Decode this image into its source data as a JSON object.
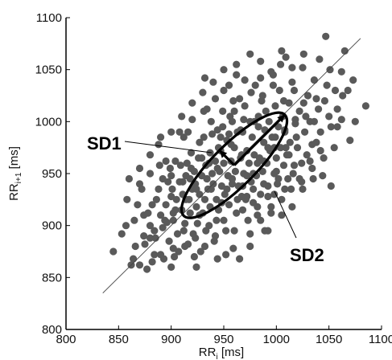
{
  "chart_data": {
    "type": "scatter",
    "title": "",
    "xlabel": {
      "main": "RR",
      "sub": "i",
      "unit": "[ms]"
    },
    "ylabel": {
      "main": "RR",
      "sub": "i+1",
      "unit": "[ms]"
    },
    "xlim": [
      800,
      1100
    ],
    "ylim": [
      800,
      1100
    ],
    "xticks": [
      "800",
      "850",
      "900",
      "950",
      "1000",
      "1050",
      "1100"
    ],
    "yticks": [
      "800",
      "850",
      "900",
      "950",
      "1000",
      "1050",
      "1100"
    ],
    "grid": false,
    "point_color": "#5a5a5a",
    "identity_line": {
      "x": [
        835,
        1080
      ],
      "y": [
        835,
        1080
      ]
    },
    "ellipse": {
      "center": [
        960,
        958
      ],
      "sd1": 20,
      "sd2": 68,
      "angle_deg": 45
    },
    "annotations": [
      {
        "label": "SD1",
        "target": "sd1-axis"
      },
      {
        "label": "SD2",
        "target": "ellipse-edge"
      }
    ],
    "points": [
      [
        845,
        875
      ],
      [
        853,
        892
      ],
      [
        858,
        925
      ],
      [
        862,
        862
      ],
      [
        865,
        905
      ],
      [
        868,
        920
      ],
      [
        870,
        862
      ],
      [
        872,
        935
      ],
      [
        875,
        882
      ],
      [
        877,
        858
      ],
      [
        878,
        912
      ],
      [
        880,
        900
      ],
      [
        882,
        865
      ],
      [
        884,
        872
      ],
      [
        885,
        888
      ],
      [
        886,
        925
      ],
      [
        888,
        935
      ],
      [
        890,
        910
      ],
      [
        892,
        945
      ],
      [
        893,
        868
      ],
      [
        895,
        920
      ],
      [
        896,
        903
      ],
      [
        898,
        885
      ],
      [
        899,
        955
      ],
      [
        900,
        928
      ],
      [
        901,
        935
      ],
      [
        902,
        912
      ],
      [
        904,
        962
      ],
      [
        905,
        925
      ],
      [
        906,
        892
      ],
      [
        907,
        875
      ],
      [
        908,
        942
      ],
      [
        910,
        915
      ],
      [
        911,
        930
      ],
      [
        912,
        985
      ],
      [
        913,
        902
      ],
      [
        914,
        948
      ],
      [
        915,
        960
      ],
      [
        916,
        882
      ],
      [
        917,
        925
      ],
      [
        918,
        912
      ],
      [
        919,
        970
      ],
      [
        920,
        935
      ],
      [
        921,
        892
      ],
      [
        922,
        952
      ],
      [
        923,
        940
      ],
      [
        924,
        918
      ],
      [
        925,
        902
      ],
      [
        926,
        965
      ],
      [
        927,
        930
      ],
      [
        928,
        875
      ],
      [
        929,
        948
      ],
      [
        930,
        912
      ],
      [
        931,
        985
      ],
      [
        932,
        925
      ],
      [
        933,
        958
      ],
      [
        934,
        945
      ],
      [
        935,
        935
      ],
      [
        936,
        900
      ],
      [
        937,
        970
      ],
      [
        938,
        1000
      ],
      [
        939,
        950
      ],
      [
        940,
        940
      ],
      [
        941,
        885
      ],
      [
        942,
        962
      ],
      [
        943,
        925
      ],
      [
        944,
        992
      ],
      [
        945,
        915
      ],
      [
        946,
        952
      ],
      [
        947,
        972
      ],
      [
        948,
        938
      ],
      [
        949,
        1010
      ],
      [
        950,
        960
      ],
      [
        951,
        930
      ],
      [
        952,
        895
      ],
      [
        953,
        982
      ],
      [
        954,
        948
      ],
      [
        955,
        920
      ],
      [
        956,
        1005
      ],
      [
        957,
        962
      ],
      [
        958,
        940
      ],
      [
        959,
        878
      ],
      [
        960,
        975
      ],
      [
        961,
        952
      ],
      [
        962,
        912
      ],
      [
        963,
        990
      ],
      [
        964,
        938
      ],
      [
        965,
        1022
      ],
      [
        966,
        965
      ],
      [
        967,
        928
      ],
      [
        968,
        990
      ],
      [
        969,
        950
      ],
      [
        970,
        1040
      ],
      [
        971,
        925
      ],
      [
        972,
        972
      ],
      [
        973,
        905
      ],
      [
        974,
        960
      ],
      [
        975,
        1000
      ],
      [
        976,
        942
      ],
      [
        977,
        985
      ],
      [
        978,
        922
      ],
      [
        979,
        968
      ],
      [
        980,
        1035
      ],
      [
        981,
        948
      ],
      [
        982,
        910
      ],
      [
        983,
        995
      ],
      [
        984,
        965
      ],
      [
        985,
        930
      ],
      [
        986,
        1020
      ],
      [
        987,
        952
      ],
      [
        988,
        980
      ],
      [
        989,
        895
      ],
      [
        990,
        1010
      ],
      [
        991,
        960
      ],
      [
        992,
        938
      ],
      [
        993,
        1000
      ],
      [
        994,
        972
      ],
      [
        995,
        918
      ],
      [
        996,
        985
      ],
      [
        997,
        1045
      ],
      [
        998,
        950
      ],
      [
        999,
        1015
      ],
      [
        1000,
        965
      ],
      [
        1001,
        940
      ],
      [
        1002,
        995
      ],
      [
        1003,
        1030
      ],
      [
        1004,
        975
      ],
      [
        1005,
        910
      ],
      [
        1006,
        1005
      ],
      [
        1007,
        958
      ],
      [
        1008,
        990
      ],
      [
        1009,
        1062
      ],
      [
        1010,
        968
      ],
      [
        1011,
        945
      ],
      [
        1012,
        1018
      ],
      [
        1013,
        980
      ],
      [
        1015,
        1038
      ],
      [
        1017,
        958
      ],
      [
        1018,
        998
      ],
      [
        1020,
        975
      ],
      [
        1022,
        1010
      ],
      [
        1024,
        942
      ],
      [
        1025,
        1052
      ],
      [
        1027,
        990
      ],
      [
        1029,
        968
      ],
      [
        1030,
        1025
      ],
      [
        1032,
        1000
      ],
      [
        1034,
        955
      ],
      [
        1036,
        1040
      ],
      [
        1038,
        980
      ],
      [
        1040,
        1012
      ],
      [
        1042,
        990
      ],
      [
        1045,
        965
      ],
      [
        1047,
        1082
      ],
      [
        1050,
        1005
      ],
      [
        1052,
        938
      ],
      [
        1055,
        975
      ],
      [
        1058,
        995
      ],
      [
        1062,
        1048
      ],
      [
        1065,
        1068
      ],
      [
        1070,
        982
      ],
      [
        1075,
        1000
      ],
      [
        1085,
        1015
      ],
      [
        895,
        962
      ],
      [
        902,
        878
      ],
      [
        916,
        990
      ],
      [
        924,
        860
      ],
      [
        934,
        1012
      ],
      [
        944,
        868
      ],
      [
        955,
        1035
      ],
      [
        962,
        1045
      ],
      [
        975,
        880
      ],
      [
        985,
        1058
      ],
      [
        992,
        895
      ],
      [
        1004,
        1055
      ],
      [
        1014,
        935
      ],
      [
        1026,
        1065
      ],
      [
        1044,
        948
      ],
      [
        870,
        940
      ],
      [
        880,
        950
      ],
      [
        888,
        978
      ],
      [
        897,
        942
      ],
      [
        908,
        990
      ],
      [
        920,
        1002
      ],
      [
        931,
        1010
      ],
      [
        942,
        1022
      ],
      [
        950,
        1030
      ],
      [
        960,
        1010
      ],
      [
        970,
        1015
      ],
      [
        976,
        1028
      ],
      [
        983,
        1005
      ],
      [
        955,
        988
      ],
      [
        945,
        975
      ],
      [
        936,
        960
      ],
      [
        927,
        980
      ],
      [
        918,
        945
      ],
      [
        909,
        958
      ],
      [
        900,
        948
      ],
      [
        889,
        958
      ],
      [
        950,
        905
      ],
      [
        960,
        895
      ],
      [
        968,
        915
      ],
      [
        978,
        935
      ],
      [
        988,
        940
      ],
      [
        998,
        930
      ],
      [
        1008,
        935
      ],
      [
        1016,
        950
      ],
      [
        1024,
        960
      ],
      [
        1034,
        978
      ],
      [
        1000,
        952
      ],
      [
        992,
        975
      ],
      [
        982,
        960
      ],
      [
        972,
        948
      ],
      [
        963,
        925
      ],
      [
        953,
        935
      ],
      [
        943,
        905
      ],
      [
        933,
        895
      ],
      [
        923,
        888
      ],
      [
        913,
        880
      ],
      [
        903,
        870
      ],
      [
        967,
        968
      ],
      [
        957,
        978
      ],
      [
        947,
        985
      ],
      [
        937,
        918
      ],
      [
        927,
        910
      ],
      [
        987,
        1025
      ],
      [
        997,
        1035
      ],
      [
        1007,
        1020
      ],
      [
        1017,
        1030
      ],
      [
        1026,
        1018
      ],
      [
        1036,
        1000
      ],
      [
        1046,
        1020
      ],
      [
        1056,
        1030
      ],
      [
        1019,
        985
      ],
      [
        1009,
        975
      ],
      [
        999,
        985
      ],
      [
        989,
        992
      ],
      [
        979,
        1000
      ],
      [
        969,
        1002
      ],
      [
        959,
        1020
      ],
      [
        949,
        995
      ],
      [
        939,
        988
      ],
      [
        929,
        965
      ],
      [
        919,
        955
      ],
      [
        911,
        942
      ],
      [
        902,
        905
      ],
      [
        892,
        898
      ],
      [
        882,
        920
      ],
      [
        874,
        910
      ],
      [
        866,
        880
      ],
      [
        857,
        900
      ],
      [
        938,
        935
      ],
      [
        948,
        922
      ],
      [
        958,
        945
      ],
      [
        968,
        938
      ],
      [
        978,
        950
      ],
      [
        988,
        962
      ],
      [
        998,
        975
      ],
      [
        1008,
        992
      ],
      [
        1018,
        1002
      ],
      [
        1028,
        1005
      ],
      [
        1038,
        1022
      ],
      [
        1048,
        1035
      ],
      [
        1058,
        1012
      ],
      [
        1068,
        1030
      ],
      [
        962,
        1055
      ],
      [
        975,
        1065
      ],
      [
        985,
        1042
      ],
      [
        995,
        1048
      ],
      [
        1005,
        1068
      ],
      [
        1015,
        1052
      ],
      [
        965,
        868
      ],
      [
        975,
        892
      ],
      [
        985,
        905
      ],
      [
        995,
        912
      ],
      [
        1005,
        925
      ],
      [
        1015,
        918
      ],
      [
        1025,
        935
      ],
      [
        1035,
        945
      ],
      [
        930,
        1028
      ],
      [
        920,
        1018
      ],
      [
        910,
        1005
      ],
      [
        900,
        990
      ],
      [
        890,
        985
      ],
      [
        880,
        968
      ],
      [
        870,
        955
      ],
      [
        860,
        945
      ],
      [
        880,
        888
      ],
      [
        890,
        872
      ],
      [
        900,
        860
      ],
      [
        912,
        895
      ],
      [
        922,
        870
      ],
      [
        932,
        880
      ],
      [
        942,
        890
      ],
      [
        952,
        872
      ],
      [
        940,
        1038
      ],
      [
        950,
        1050
      ],
      [
        932,
        1042
      ],
      [
        1041,
        1060
      ],
      [
        1051,
        1050
      ],
      [
        1063,
        1025
      ],
      [
        1073,
        1040
      ],
      [
        958,
        1000
      ],
      [
        966,
        992
      ],
      [
        944,
        955
      ],
      [
        934,
        945
      ],
      [
        924,
        935
      ],
      [
        914,
        925
      ],
      [
        904,
        915
      ],
      [
        894,
        905
      ],
      [
        884,
        895
      ],
      [
        874,
        890
      ],
      [
        864,
        868
      ],
      [
        972,
        928
      ],
      [
        982,
        918
      ],
      [
        992,
        928
      ],
      [
        1002,
        945
      ],
      [
        1012,
        968
      ],
      [
        1022,
        945
      ],
      [
        1032,
        962
      ],
      [
        1042,
        972
      ],
      [
        1052,
        995
      ],
      [
        1062,
        1002
      ]
    ]
  }
}
